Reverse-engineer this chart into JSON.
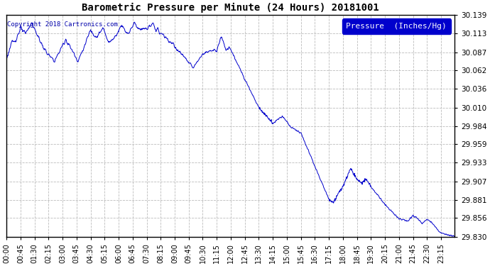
{
  "title": "Barometric Pressure per Minute (24 Hours) 20181001",
  "copyright_text": "Copyright 2018 Cartronics.com",
  "legend_label": "Pressure  (Inches/Hg)",
  "line_color": "#0000CC",
  "background_color": "#ffffff",
  "grid_color": "#aaaaaa",
  "ylim": [
    29.83,
    30.139
  ],
  "yticks": [
    29.83,
    29.856,
    29.881,
    29.907,
    29.933,
    29.959,
    29.984,
    30.01,
    30.036,
    30.062,
    30.087,
    30.113,
    30.139
  ],
  "xtick_labels": [
    "00:00",
    "00:45",
    "01:30",
    "02:15",
    "03:00",
    "03:45",
    "04:30",
    "05:15",
    "06:00",
    "06:45",
    "07:30",
    "08:15",
    "09:00",
    "09:45",
    "10:30",
    "11:15",
    "12:00",
    "12:45",
    "13:30",
    "14:15",
    "15:00",
    "15:45",
    "16:30",
    "17:15",
    "18:00",
    "18:45",
    "19:30",
    "20:15",
    "21:00",
    "21:45",
    "22:30",
    "23:15"
  ],
  "num_minutes": 1440
}
